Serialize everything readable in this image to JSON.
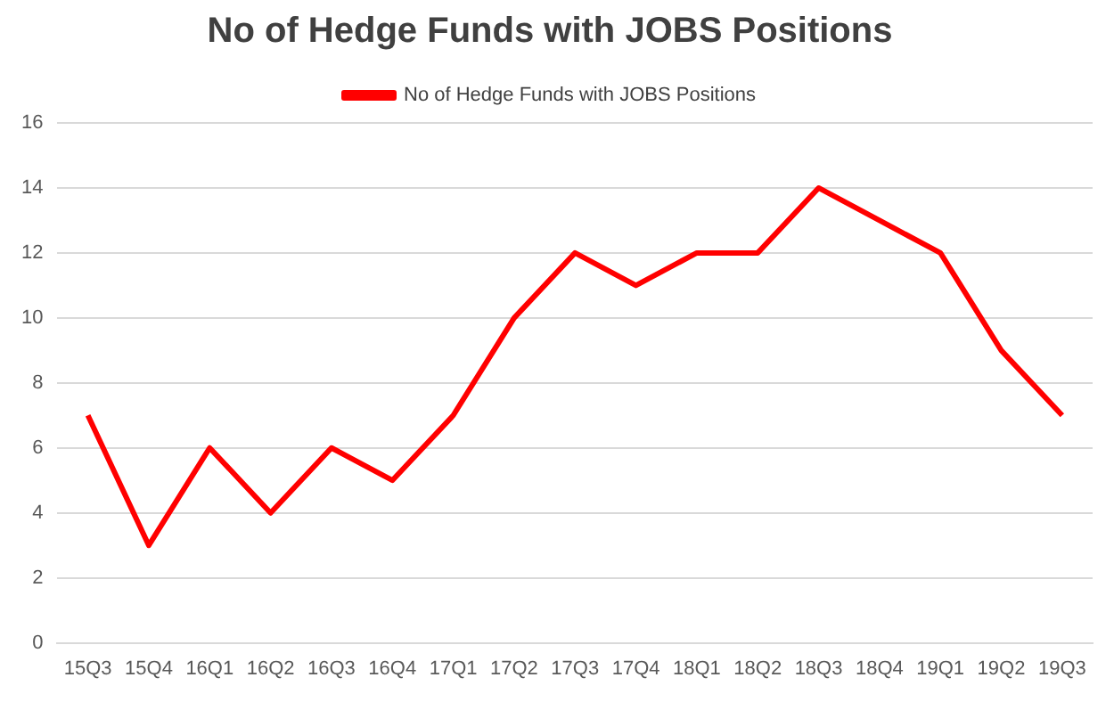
{
  "chart_data": {
    "type": "line",
    "title": "No of Hedge Funds with JOBS Positions",
    "categories": [
      "15Q3",
      "15Q4",
      "16Q1",
      "16Q2",
      "16Q3",
      "16Q4",
      "17Q1",
      "17Q2",
      "17Q3",
      "17Q4",
      "18Q1",
      "18Q2",
      "18Q3",
      "18Q4",
      "19Q1",
      "19Q2",
      "19Q3"
    ],
    "series": [
      {
        "name": "No of Hedge Funds with JOBS Positions",
        "color": "#ff0000",
        "values": [
          7,
          3,
          6,
          4,
          6,
          5,
          7,
          10,
          12,
          11,
          12,
          12,
          14,
          13,
          12,
          9,
          7
        ]
      }
    ],
    "ylim": [
      0,
      16
    ],
    "yticks": [
      0,
      2,
      4,
      6,
      8,
      10,
      12,
      14,
      16
    ],
    "grid": "y",
    "legend": "top",
    "marker": "none",
    "line_style": "solid"
  }
}
